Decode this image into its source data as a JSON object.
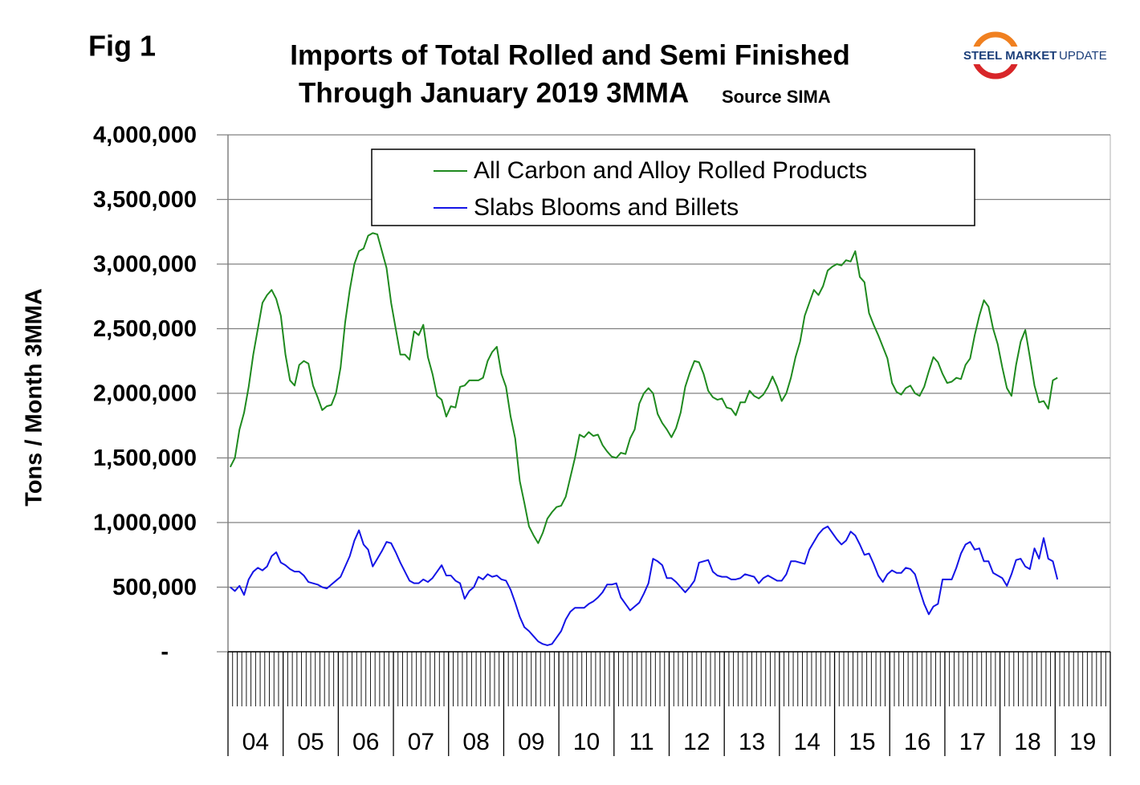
{
  "chart_data": {
    "type": "line",
    "figure_label": "Fig 1",
    "title": "Imports of Total Rolled and Semi Finished",
    "subtitle": "Through January 2019 3MMA",
    "source": "Source SIMA",
    "logo_bold": "STEEL MARKET",
    "logo_light": "UPDATE",
    "y_label": "Tons / Month 3MMA",
    "year_labels": [
      "04",
      "05",
      "06",
      "07",
      "08",
      "09",
      "10",
      "11",
      "12",
      "13",
      "14",
      "15",
      "16",
      "17",
      "18",
      "19"
    ],
    "ylim": [
      0,
      4000000
    ],
    "yticks": [
      {
        "value": 0,
        "label": "-"
      },
      {
        "value": 500000,
        "label": "500,000"
      },
      {
        "value": 1000000,
        "label": "1,000,000"
      },
      {
        "value": 1500000,
        "label": "1,500,000"
      },
      {
        "value": 2000000,
        "label": "2,000,000"
      },
      {
        "value": 2500000,
        "label": "2,500,000"
      },
      {
        "value": 3000000,
        "label": "3,000,000"
      },
      {
        "value": 3500000,
        "label": "3,500,000"
      },
      {
        "value": 4000000,
        "label": "4,000,000"
      }
    ],
    "grid": true,
    "series": [
      {
        "name": "All Carbon and Alloy Rolled Products",
        "color": "#1f8a1f",
        "values": [
          1430000,
          1500000,
          1720000,
          1850000,
          2050000,
          2300000,
          2500000,
          2700000,
          2760000,
          2800000,
          2730000,
          2600000,
          2300000,
          2100000,
          2060000,
          2220000,
          2250000,
          2230000,
          2060000,
          1970000,
          1870000,
          1900000,
          1910000,
          2000000,
          2200000,
          2550000,
          2800000,
          3000000,
          3100000,
          3120000,
          3220000,
          3240000,
          3230000,
          3100000,
          2970000,
          2700000,
          2500000,
          2300000,
          2300000,
          2260000,
          2480000,
          2450000,
          2530000,
          2280000,
          2150000,
          1980000,
          1950000,
          1820000,
          1900000,
          1890000,
          2050000,
          2060000,
          2100000,
          2100000,
          2100000,
          2120000,
          2250000,
          2320000,
          2360000,
          2150000,
          2050000,
          1820000,
          1650000,
          1320000,
          1150000,
          970000,
          900000,
          840000,
          920000,
          1030000,
          1080000,
          1120000,
          1130000,
          1200000,
          1350000,
          1500000,
          1680000,
          1660000,
          1700000,
          1670000,
          1680000,
          1600000,
          1550000,
          1510000,
          1500000,
          1540000,
          1530000,
          1650000,
          1720000,
          1920000,
          2000000,
          2040000,
          2000000,
          1840000,
          1770000,
          1720000,
          1660000,
          1730000,
          1850000,
          2050000,
          2160000,
          2250000,
          2240000,
          2150000,
          2020000,
          1970000,
          1950000,
          1960000,
          1890000,
          1880000,
          1830000,
          1930000,
          1930000,
          2020000,
          1980000,
          1960000,
          1990000,
          2050000,
          2130000,
          2050000,
          1940000,
          2000000,
          2120000,
          2280000,
          2400000,
          2600000,
          2700000,
          2800000,
          2760000,
          2830000,
          2950000,
          2980000,
          3000000,
          2990000,
          3030000,
          3020000,
          3100000,
          2900000,
          2860000,
          2620000,
          2530000,
          2450000,
          2360000,
          2270000,
          2080000,
          2010000,
          1990000,
          2040000,
          2060000,
          2000000,
          1980000,
          2050000,
          2170000,
          2280000,
          2240000,
          2150000,
          2080000,
          2090000,
          2120000,
          2110000,
          2220000,
          2270000,
          2450000,
          2600000,
          2720000,
          2670000,
          2500000,
          2380000,
          2200000,
          2040000,
          1980000,
          2220000,
          2400000,
          2490000,
          2280000,
          2060000,
          1930000,
          1940000,
          1880000,
          2100000,
          2120000
        ]
      },
      {
        "name": "Slabs Blooms and Billets",
        "color": "#1414e6",
        "values": [
          500000,
          470000,
          510000,
          440000,
          560000,
          620000,
          650000,
          630000,
          660000,
          740000,
          770000,
          690000,
          670000,
          640000,
          620000,
          620000,
          590000,
          540000,
          530000,
          520000,
          500000,
          490000,
          520000,
          550000,
          580000,
          660000,
          740000,
          860000,
          940000,
          830000,
          790000,
          660000,
          720000,
          780000,
          850000,
          840000,
          770000,
          690000,
          620000,
          550000,
          530000,
          530000,
          560000,
          540000,
          570000,
          620000,
          670000,
          590000,
          590000,
          550000,
          530000,
          410000,
          470000,
          500000,
          580000,
          560000,
          600000,
          580000,
          590000,
          560000,
          550000,
          480000,
          380000,
          270000,
          190000,
          160000,
          120000,
          80000,
          60000,
          50000,
          60000,
          110000,
          160000,
          250000,
          310000,
          340000,
          340000,
          340000,
          370000,
          390000,
          420000,
          460000,
          520000,
          520000,
          530000,
          420000,
          370000,
          320000,
          350000,
          380000,
          450000,
          530000,
          720000,
          700000,
          670000,
          570000,
          570000,
          540000,
          500000,
          460000,
          500000,
          550000,
          690000,
          700000,
          710000,
          620000,
          590000,
          580000,
          580000,
          560000,
          560000,
          570000,
          600000,
          590000,
          580000,
          530000,
          570000,
          590000,
          570000,
          550000,
          550000,
          600000,
          700000,
          700000,
          690000,
          680000,
          790000,
          850000,
          910000,
          950000,
          970000,
          920000,
          870000,
          830000,
          860000,
          930000,
          900000,
          830000,
          750000,
          760000,
          680000,
          590000,
          540000,
          600000,
          630000,
          610000,
          610000,
          650000,
          640000,
          600000,
          480000,
          370000,
          290000,
          350000,
          370000,
          560000,
          560000,
          560000,
          650000,
          760000,
          830000,
          850000,
          790000,
          800000,
          700000,
          700000,
          610000,
          590000,
          570000,
          510000,
          600000,
          710000,
          720000,
          660000,
          640000,
          800000,
          720000,
          880000,
          720000,
          700000,
          560000
        ]
      }
    ]
  }
}
